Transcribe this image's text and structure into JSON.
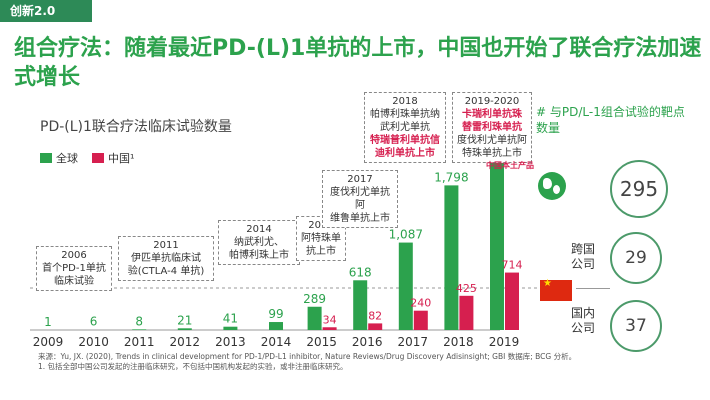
{
  "tag": "创新2.0",
  "headline": "组合疗法：随着最近PD-(L)1单抗的上市，中国也开始了联合疗法加速式增长",
  "chart_data": {
    "type": "bar",
    "title": "PD-(L)1联合疗法临床试验数量",
    "categories": [
      "2009",
      "2010",
      "2011",
      "2012",
      "2013",
      "2014",
      "2015",
      "2016",
      "2017",
      "2018",
      "2019"
    ],
    "series": [
      {
        "name": "全球",
        "color": "#2ca24d",
        "values": [
          1,
          6,
          8,
          21,
          41,
          99,
          289,
          618,
          1087,
          1798,
          2251
        ]
      },
      {
        "name": "中国¹",
        "color": "#d61f4f",
        "values": [
          null,
          null,
          null,
          null,
          null,
          null,
          34,
          82,
          240,
          425,
          714
        ]
      }
    ],
    "value_labels": {
      "global": [
        "1",
        "6",
        "8",
        "21",
        "41",
        "99",
        "289",
        "618",
        "1,087",
        "1,798",
        "2,251"
      ],
      "china": [
        "",
        "",
        "",
        "",
        "",
        "",
        "34",
        "82",
        "240",
        "425",
        "714"
      ]
    },
    "ylim": [
      0,
      2300
    ]
  },
  "legend": {
    "global": "全球",
    "china": "中国¹"
  },
  "annotations": {
    "a2006": {
      "year": "2006",
      "lines": [
        "首个PD-1单抗",
        "临床试验"
      ]
    },
    "a2011": {
      "year": "2011",
      "lines": [
        "伊匹单抗临床试",
        "验(CTLA-4 单抗)"
      ]
    },
    "a2014": {
      "year": "2014",
      "lines": [
        "纳武利尤、",
        "帕博利珠上市"
      ]
    },
    "a2016": {
      "year": "2016",
      "lines": [
        "阿特珠单",
        "抗上市"
      ]
    },
    "a2017": {
      "year": "2017",
      "lines": [
        "度伐利尤单抗阿",
        "维鲁单抗上市"
      ]
    },
    "a2018": {
      "year": "2018",
      "lines": [
        "帕博利珠单抗纳",
        "武利尤单抗"
      ],
      "red_lines": [
        "特瑞普利单抗信",
        "迪利单抗上市"
      ]
    },
    "a2019": {
      "year": "2019-2020",
      "red_lines": [
        "卡瑞利单抗珠",
        "替雷利珠单抗"
      ],
      "lines": [
        "度伐利尤单抗阿",
        "特珠单抗上市"
      ]
    }
  },
  "china_note": "中国本土产品",
  "right_panel": {
    "title": "# 与PD/L-1组合试验的靶点数量",
    "global_count": "295",
    "cross_label": "跨国公司",
    "cross_count": "29",
    "domestic_label": "国内公司",
    "domestic_count": "37"
  },
  "footer": {
    "source": "来源：Yu, JX. (2020), Trends in clinical development for PD-1/PD-L1 inhibitor, Nature Reviews/Drug Discovery Adisinsight; GBI 数据库; BCG 分析。",
    "note": "1. 包括全部中国公司发起的注册临床研究，不包括中国机构发起的实验，或非注册临床研究。"
  }
}
